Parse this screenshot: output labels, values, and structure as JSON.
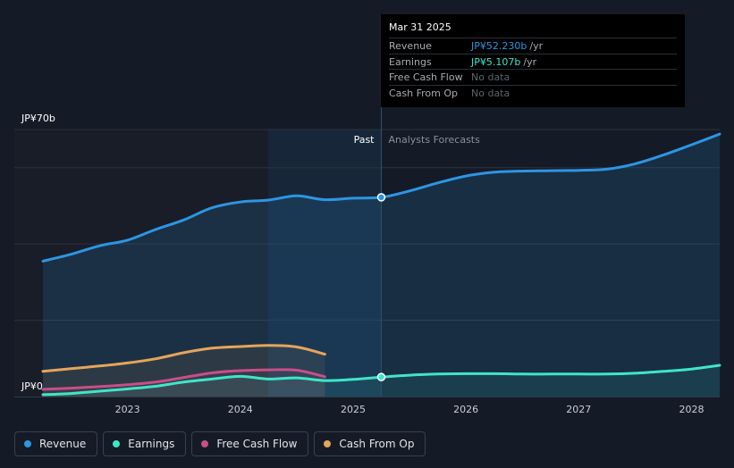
{
  "chart_data": {
    "type": "line",
    "y_axis": {
      "top_label": "JP¥70b",
      "bottom_label": "JP¥0",
      "ylim": [
        0,
        70
      ]
    },
    "x_ticks": [
      "2023",
      "2024",
      "2025",
      "2026",
      "2027",
      "2028"
    ],
    "x_range": [
      2022.25,
      2028.25
    ],
    "regions": {
      "past_label": "Past",
      "forecast_label": "Analysts Forecasts",
      "divider_x": 2025.25
    },
    "series": [
      {
        "name": "Revenue",
        "color": "#2d95e3",
        "filled": true,
        "points": [
          [
            2022.25,
            35.5
          ],
          [
            2022.5,
            37.3
          ],
          [
            2022.75,
            39.5
          ],
          [
            2023.0,
            41.0
          ],
          [
            2023.25,
            43.8
          ],
          [
            2023.5,
            46.3
          ],
          [
            2023.75,
            49.5
          ],
          [
            2024.0,
            51.0
          ],
          [
            2024.25,
            51.5
          ],
          [
            2024.5,
            52.6
          ],
          [
            2024.75,
            51.6
          ],
          [
            2025.0,
            52.0
          ],
          [
            2025.25,
            52.23
          ],
          [
            2025.5,
            53.9
          ],
          [
            2025.75,
            56.0
          ],
          [
            2026.0,
            57.8
          ],
          [
            2026.25,
            58.8
          ],
          [
            2026.5,
            59.1
          ],
          [
            2026.75,
            59.2
          ],
          [
            2027.0,
            59.3
          ],
          [
            2027.25,
            59.6
          ],
          [
            2027.5,
            61.0
          ],
          [
            2027.75,
            63.3
          ],
          [
            2028.0,
            66.0
          ],
          [
            2028.25,
            68.8
          ]
        ]
      },
      {
        "name": "Earnings",
        "color": "#3ee6c9",
        "filled": false,
        "points": [
          [
            2022.25,
            0.5
          ],
          [
            2022.5,
            0.8
          ],
          [
            2022.75,
            1.4
          ],
          [
            2023.0,
            2.0
          ],
          [
            2023.25,
            2.7
          ],
          [
            2023.5,
            3.8
          ],
          [
            2023.75,
            4.6
          ],
          [
            2024.0,
            5.3
          ],
          [
            2024.25,
            4.6
          ],
          [
            2024.5,
            4.9
          ],
          [
            2024.75,
            4.2
          ],
          [
            2025.0,
            4.5
          ],
          [
            2025.25,
            5.107
          ],
          [
            2025.5,
            5.6
          ],
          [
            2025.75,
            5.9
          ],
          [
            2026.0,
            6.0
          ],
          [
            2026.25,
            6.0
          ],
          [
            2026.5,
            5.9
          ],
          [
            2026.75,
            5.9
          ],
          [
            2027.0,
            5.9
          ],
          [
            2027.25,
            5.9
          ],
          [
            2027.5,
            6.1
          ],
          [
            2027.75,
            6.6
          ],
          [
            2028.0,
            7.2
          ],
          [
            2028.25,
            8.2
          ]
        ]
      },
      {
        "name": "Free Cash Flow",
        "color": "#c64f8a",
        "filled": false,
        "points": [
          [
            2022.25,
            1.9
          ],
          [
            2022.5,
            2.2
          ],
          [
            2022.75,
            2.6
          ],
          [
            2023.0,
            3.1
          ],
          [
            2023.25,
            3.8
          ],
          [
            2023.5,
            5.0
          ],
          [
            2023.75,
            6.2
          ],
          [
            2024.0,
            6.8
          ],
          [
            2024.25,
            7.0
          ],
          [
            2024.5,
            6.9
          ],
          [
            2024.75,
            5.2
          ]
        ]
      },
      {
        "name": "Cash From Op",
        "color": "#e5a55b",
        "filled": false,
        "points": [
          [
            2022.25,
            6.6
          ],
          [
            2022.5,
            7.3
          ],
          [
            2022.75,
            8.0
          ],
          [
            2023.0,
            8.8
          ],
          [
            2023.25,
            9.9
          ],
          [
            2023.5,
            11.5
          ],
          [
            2023.75,
            12.7
          ],
          [
            2024.0,
            13.1
          ],
          [
            2024.25,
            13.4
          ],
          [
            2024.5,
            13.0
          ],
          [
            2024.75,
            11.1
          ]
        ]
      }
    ]
  },
  "tooltip": {
    "date": "Mar 31 2025",
    "rows": [
      {
        "label": "Revenue",
        "value": "JP¥52.230b",
        "unit": "/yr"
      },
      {
        "label": "Earnings",
        "value": "JP¥5.107b",
        "unit": "/yr"
      },
      {
        "label": "Free Cash Flow",
        "nodata": "No data"
      },
      {
        "label": "Cash From Op",
        "nodata": "No data"
      }
    ]
  },
  "legend": [
    {
      "label": "Revenue",
      "color": "#2d95e3"
    },
    {
      "label": "Earnings",
      "color": "#3ee6c9"
    },
    {
      "label": "Free Cash Flow",
      "color": "#c64f8a"
    },
    {
      "label": "Cash From Op",
      "color": "#e5a55b"
    }
  ]
}
